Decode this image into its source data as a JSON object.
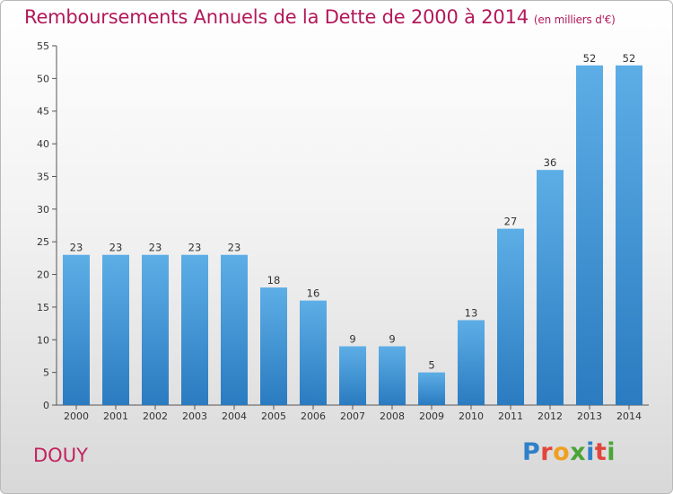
{
  "header": {
    "title": "Remboursements Annuels de la Dette de 2000 à 2014",
    "unit": "(en milliers d'€)"
  },
  "footer": {
    "city": "DOUY",
    "logo_letters": [
      "P",
      "r",
      "o",
      "x",
      "i",
      "t",
      "i"
    ],
    "logo_colors": [
      "#2f80c8",
      "#e2453c",
      "#f0a020",
      "#49a536",
      "#2f80c8",
      "#e2453c",
      "#49a536"
    ]
  },
  "colors": {
    "bar_top": "#5daee6",
    "bar_bottom": "#2a7bc0",
    "title": "#b2195a",
    "axis": "#555555",
    "grid": "#d9d9d9"
  },
  "chart_data": {
    "type": "bar",
    "title": "Remboursements Annuels de la Dette de 2000 à 2014",
    "subtitle": "(en milliers d'€)",
    "categories": [
      "2000",
      "2001",
      "2002",
      "2003",
      "2004",
      "2005",
      "2006",
      "2007",
      "2008",
      "2009",
      "2010",
      "2011",
      "2012",
      "2013",
      "2014"
    ],
    "values": [
      23,
      23,
      23,
      23,
      23,
      18,
      16,
      9,
      9,
      5,
      13,
      27,
      36,
      52,
      52
    ],
    "ylim": [
      0,
      55
    ],
    "yticks": [
      0,
      5,
      10,
      15,
      20,
      25,
      30,
      35,
      40,
      45,
      50,
      55
    ],
    "grid": false,
    "xlabel": "",
    "ylabel": ""
  }
}
